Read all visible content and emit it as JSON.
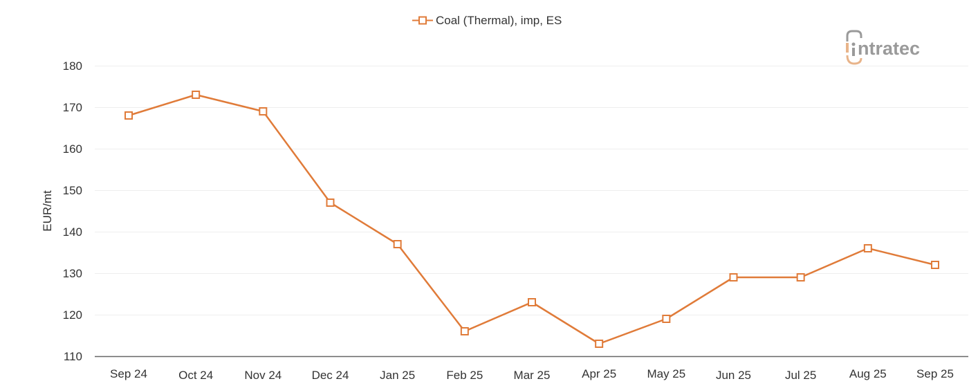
{
  "legend": {
    "label": "Coal (Thermal), imp, ES",
    "marker": "open-square-line"
  },
  "logo": {
    "text": "ntratec",
    "brand": "intratec"
  },
  "colors": {
    "series": "#E07B39",
    "grid": "#EEEEEE",
    "axis": "#666666",
    "logo_gray": "#9A9A9A",
    "logo_accent": "#E8B48A"
  },
  "chart_data": {
    "type": "line",
    "title": "",
    "xlabel": "",
    "ylabel": "EUR/mt",
    "ylim": [
      110,
      180
    ],
    "yticks": [
      110,
      120,
      130,
      140,
      150,
      160,
      170,
      180
    ],
    "grid": true,
    "legend_position": "top-center",
    "categories": [
      "Sep 24",
      "Oct 24",
      "Nov 24",
      "Dec 24",
      "Jan 25",
      "Feb 25",
      "Mar 25",
      "Apr 25",
      "May 25",
      "Jun 25",
      "Jul 25",
      "Aug 25",
      "Sep 25"
    ],
    "series": [
      {
        "name": "Coal (Thermal), imp, ES",
        "values": [
          168,
          173,
          169,
          147,
          137,
          116,
          123,
          113,
          119,
          129,
          129,
          136,
          132
        ]
      }
    ]
  }
}
